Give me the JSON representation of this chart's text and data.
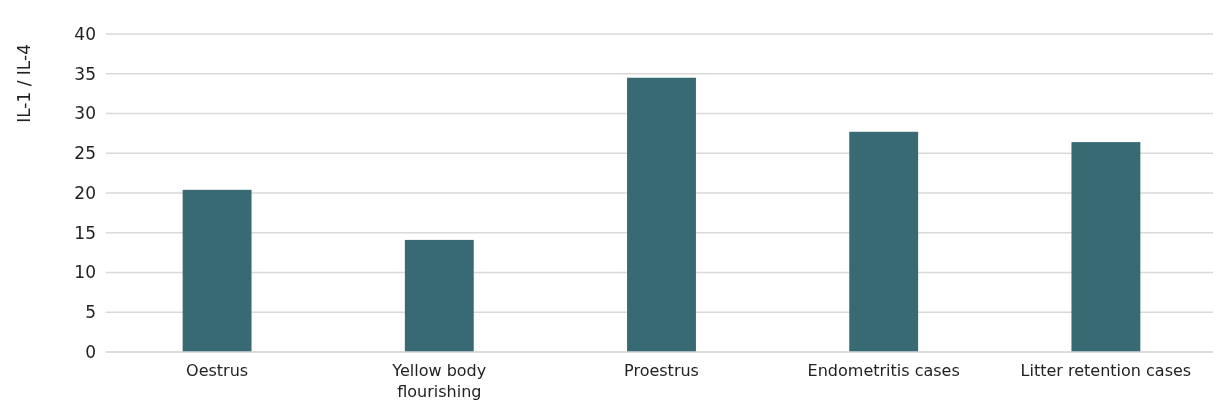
{
  "chart_data": {
    "type": "bar",
    "ylabel": "IL-1 / IL-4",
    "categories": [
      "Oestrus",
      "Yellow body flourishing",
      "Proestrus",
      "Endometritis cases",
      "Litter retention cases"
    ],
    "values": [
      20.4,
      14.1,
      34.5,
      27.7,
      26.4
    ],
    "color": "#376a73",
    "ylim": [
      0,
      40
    ],
    "yticks": [
      0,
      5,
      10,
      15,
      20,
      25,
      30,
      35,
      40
    ],
    "grid": "y"
  }
}
